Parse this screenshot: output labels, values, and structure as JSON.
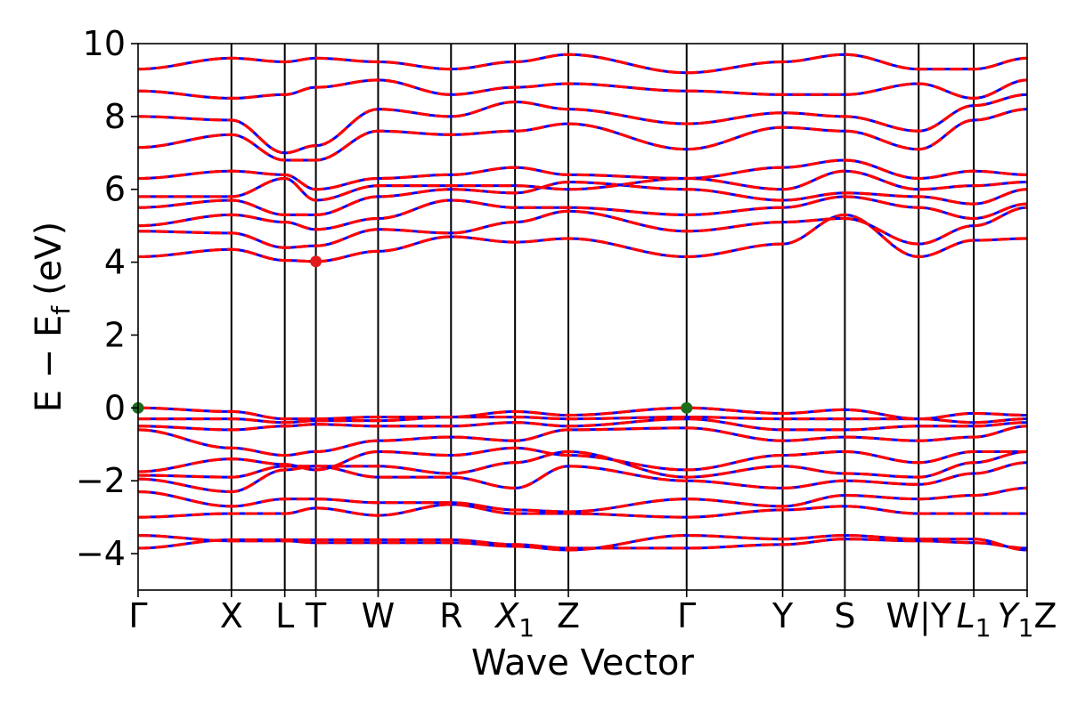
{
  "chart_data": {
    "type": "line",
    "xlabel": "Wave Vector",
    "ylabel": "E − E",
    "ylabel_sub": "f",
    "ylabel_unit": "(eV)",
    "ylim": [
      -5,
      10
    ],
    "yticks": [
      -4,
      -2,
      0,
      2,
      4,
      6,
      8,
      10
    ],
    "ytick_labels": [
      "−4",
      "−2",
      "0",
      "2",
      "4",
      "6",
      "8",
      "10"
    ],
    "xlim": [
      0,
      10
    ],
    "kpoints": [
      {
        "pos": 0.0,
        "label": "Γ"
      },
      {
        "pos": 1.05,
        "label": "X"
      },
      {
        "pos": 1.65,
        "label": "L"
      },
      {
        "pos": 2.0,
        "label": "T"
      },
      {
        "pos": 2.7,
        "label": "W"
      },
      {
        "pos": 3.52,
        "label": "R"
      },
      {
        "pos": 4.24,
        "label": "X",
        "sub": "1"
      },
      {
        "pos": 4.84,
        "label": "Z"
      },
      {
        "pos": 6.17,
        "label": "Γ"
      },
      {
        "pos": 7.25,
        "label": "Y"
      },
      {
        "pos": 7.95,
        "label": "S"
      },
      {
        "pos": 8.78,
        "label": "W|Y"
      },
      {
        "pos": 9.4,
        "label": "L",
        "sub": "1"
      },
      {
        "pos": 10.0,
        "label": "Y",
        "sub": "1",
        "suffix": "Z"
      }
    ],
    "band_color_primary": "#ff0000",
    "band_color_secondary": "#0000ff",
    "band_energies_at_kpoints": {
      "valence": [
        [
          -3.85,
          -3.62,
          -3.62,
          -3.62,
          -3.62,
          -3.62,
          -3.75,
          -3.85,
          -3.85,
          -3.75,
          -3.6,
          -3.65,
          -3.7,
          -3.85
        ],
        [
          -3.5,
          -3.65,
          -3.65,
          -3.7,
          -3.7,
          -3.7,
          -3.8,
          -3.9,
          -3.5,
          -3.6,
          -3.5,
          -3.6,
          -3.6,
          -3.9
        ],
        [
          -3.0,
          -2.9,
          -2.9,
          -2.75,
          -2.95,
          -2.65,
          -2.9,
          -2.9,
          -3.0,
          -2.8,
          -2.7,
          -2.9,
          -2.9,
          -2.9
        ],
        [
          -2.3,
          -2.7,
          -2.5,
          -2.5,
          -2.6,
          -2.6,
          -2.8,
          -2.85,
          -2.5,
          -2.7,
          -2.4,
          -2.5,
          -2.4,
          -2.2
        ],
        [
          -1.95,
          -2.3,
          -1.7,
          -1.6,
          -1.9,
          -1.9,
          -2.2,
          -1.6,
          -2.0,
          -2.2,
          -2.0,
          -2.1,
          -1.8,
          -1.5
        ],
        [
          -1.85,
          -1.9,
          -1.6,
          -1.6,
          -1.6,
          -1.8,
          -1.5,
          -1.2,
          -1.9,
          -1.6,
          -1.8,
          -1.9,
          -1.5,
          -1.2
        ],
        [
          -1.75,
          -1.4,
          -1.55,
          -1.7,
          -1.2,
          -1.3,
          -1.1,
          -1.3,
          -1.7,
          -1.3,
          -1.2,
          -1.5,
          -1.2,
          -1.2
        ],
        [
          -0.6,
          -1.1,
          -1.3,
          -1.2,
          -0.9,
          -0.8,
          -0.9,
          -0.6,
          -0.55,
          -0.9,
          -0.8,
          -0.9,
          -0.8,
          -0.5
        ],
        [
          -0.5,
          -0.6,
          -0.5,
          -0.45,
          -0.5,
          -0.5,
          -0.4,
          -0.5,
          -0.3,
          -0.6,
          -0.6,
          -0.5,
          -0.5,
          -0.4
        ],
        [
          -0.3,
          -0.3,
          -0.4,
          -0.35,
          -0.35,
          -0.25,
          -0.25,
          -0.3,
          -0.25,
          -0.3,
          -0.3,
          -0.3,
          -0.4,
          -0.3
        ],
        [
          0.0,
          -0.1,
          -0.3,
          -0.3,
          -0.25,
          -0.25,
          -0.1,
          -0.2,
          0.0,
          -0.15,
          -0.05,
          -0.3,
          -0.15,
          -0.2
        ]
      ],
      "conduction": [
        [
          4.15,
          4.35,
          4.05,
          4.02,
          4.3,
          4.7,
          4.55,
          4.65,
          4.15,
          4.5,
          5.3,
          4.15,
          4.6,
          4.65
        ],
        [
          4.85,
          4.8,
          4.4,
          4.45,
          4.9,
          4.8,
          5.1,
          5.4,
          4.85,
          5.1,
          5.2,
          4.5,
          5.0,
          5.5
        ],
        [
          5.0,
          5.3,
          5.1,
          4.9,
          5.2,
          5.7,
          5.5,
          5.5,
          5.3,
          5.5,
          5.8,
          5.5,
          5.2,
          5.6
        ],
        [
          5.5,
          5.7,
          5.3,
          5.3,
          5.8,
          6.0,
          5.9,
          6.2,
          6.0,
          5.7,
          5.9,
          5.8,
          5.6,
          6.0
        ],
        [
          5.8,
          5.8,
          6.3,
          5.7,
          6.1,
          6.1,
          6.1,
          6.0,
          6.3,
          6.0,
          6.5,
          6.0,
          6.1,
          6.2
        ],
        [
          6.3,
          6.5,
          6.4,
          6.0,
          6.3,
          6.4,
          6.6,
          6.4,
          6.3,
          6.6,
          6.8,
          6.3,
          6.5,
          6.4
        ],
        [
          7.15,
          7.5,
          6.8,
          6.8,
          7.6,
          7.5,
          7.6,
          7.8,
          7.1,
          7.7,
          7.6,
          7.1,
          7.9,
          8.2
        ],
        [
          8.0,
          7.9,
          7.0,
          7.2,
          8.2,
          8.0,
          8.4,
          8.2,
          7.8,
          8.1,
          8.0,
          7.6,
          8.3,
          8.6
        ],
        [
          8.7,
          8.5,
          8.6,
          8.8,
          9.0,
          8.6,
          8.8,
          8.9,
          8.7,
          8.6,
          8.6,
          8.9,
          8.5,
          9.0
        ],
        [
          9.3,
          9.6,
          9.5,
          9.6,
          9.5,
          9.3,
          9.5,
          9.7,
          9.2,
          9.5,
          9.7,
          9.3,
          9.3,
          9.6
        ]
      ]
    },
    "markers": [
      {
        "kpoint": 0,
        "energy": 0.0,
        "color": "#1a6e1a"
      },
      {
        "kpoint": 8,
        "energy": 0.0,
        "color": "#1a6e1a"
      },
      {
        "kpoint": 3,
        "energy": 4.02,
        "color": "#e31a1c"
      }
    ]
  }
}
